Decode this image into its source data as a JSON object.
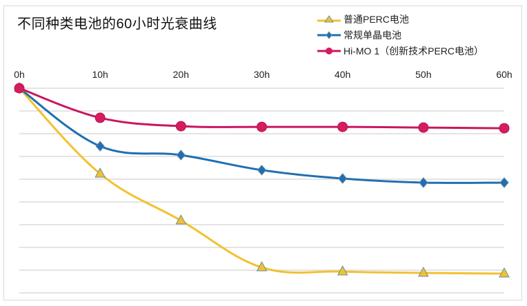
{
  "chart_data": {
    "type": "line",
    "title": "不同种类电池的60小时光衰曲线",
    "categories": [
      "0h",
      "10h",
      "20h",
      "30h",
      "40h",
      "50h",
      "60h"
    ],
    "x": [
      0,
      10,
      20,
      30,
      40,
      50,
      60
    ],
    "xlabel": "",
    "ylabel": "",
    "ylim": [
      -9,
      0
    ],
    "grid": true,
    "legend_position": "top-right",
    "x_axis_position": "top",
    "series": [
      {
        "name": "普通PERC电池",
        "color": "#f2c12e",
        "marker": "triangle",
        "values": [
          0,
          -3.76,
          -5.82,
          -7.88,
          -8.06,
          -8.12,
          -8.15
        ]
      },
      {
        "name": "常规单晶电池",
        "color": "#1f6fb2",
        "marker": "diamond",
        "values": [
          0,
          -2.55,
          -2.94,
          -3.6,
          -3.97,
          -4.15,
          -4.15
        ]
      },
      {
        "name": "Hi-MO 1（创新技术PERC电池）",
        "color": "#c8175d",
        "marker": "circle",
        "values": [
          0,
          -1.3,
          -1.67,
          -1.7,
          -1.7,
          -1.73,
          -1.76
        ]
      }
    ]
  }
}
